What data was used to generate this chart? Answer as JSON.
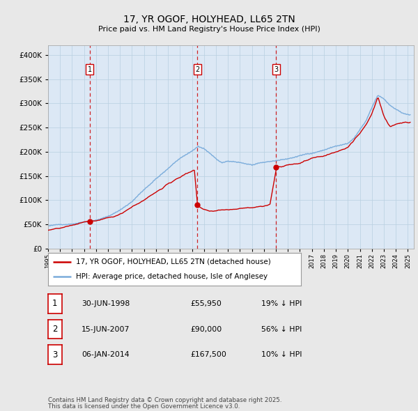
{
  "title": "17, YR OGOF, HOLYHEAD, LL65 2TN",
  "subtitle": "Price paid vs. HM Land Registry's House Price Index (HPI)",
  "legend_line1": "17, YR OGOF, HOLYHEAD, LL65 2TN (detached house)",
  "legend_line2": "HPI: Average price, detached house, Isle of Anglesey",
  "sale_color": "#cc0000",
  "hpi_color": "#7aacdb",
  "background_color": "#e8e8e8",
  "plot_bg": "#dce8f5",
  "sales": [
    {
      "label": "1",
      "date_str": "30-JUN-1998",
      "price": 55950,
      "x_year": 1998.46,
      "pct": "19% ↓ HPI"
    },
    {
      "label": "2",
      "date_str": "15-JUN-2007",
      "price": 90000,
      "x_year": 2007.45,
      "pct": "56% ↓ HPI"
    },
    {
      "label": "3",
      "date_str": "06-JAN-2014",
      "price": 167500,
      "x_year": 2014.02,
      "pct": "10% ↓ HPI"
    }
  ],
  "footer_line1": "Contains HM Land Registry data © Crown copyright and database right 2025.",
  "footer_line2": "This data is licensed under the Open Government Licence v3.0.",
  "ylim": [
    0,
    420000
  ],
  "xlim_start": 1995.0,
  "xlim_end": 2025.5,
  "hpi_anchors_year": [
    1995.0,
    1996.0,
    1997.0,
    1998.0,
    1999.0,
    2000.0,
    2001.0,
    2002.0,
    2003.0,
    2004.0,
    2005.0,
    2006.0,
    2007.0,
    2007.5,
    2008.0,
    2008.5,
    2009.0,
    2009.5,
    2010.0,
    2011.0,
    2012.0,
    2013.0,
    2014.0,
    2015.0,
    2016.0,
    2017.0,
    2018.0,
    2019.0,
    2020.0,
    2020.5,
    2021.0,
    2021.5,
    2022.0,
    2022.5,
    2023.0,
    2023.5,
    2024.0,
    2024.5,
    2025.2
  ],
  "hpi_anchors_val": [
    47000,
    49000,
    52000,
    57000,
    62000,
    70000,
    82000,
    100000,
    125000,
    148000,
    168000,
    190000,
    205000,
    215000,
    210000,
    200000,
    188000,
    180000,
    182000,
    180000,
    175000,
    178000,
    182000,
    186000,
    192000,
    198000,
    205000,
    213000,
    218000,
    228000,
    245000,
    262000,
    290000,
    315000,
    308000,
    295000,
    288000,
    280000,
    275000
  ],
  "paid_seg1_year": [
    1995.0,
    1996.0,
    1997.0,
    1998.46
  ],
  "paid_seg1_val": [
    38000,
    41000,
    46000,
    55950
  ],
  "paid_seg2_year": [
    1998.46,
    1999.5,
    2001.0,
    2003.0,
    2005.0,
    2006.5,
    2007.2,
    2007.45
  ],
  "paid_seg2_val": [
    55950,
    60000,
    72000,
    100000,
    130000,
    150000,
    158000,
    90000
  ],
  "paid_seg3_year": [
    2007.45,
    2008.0,
    2008.5,
    2009.0,
    2009.5,
    2010.5,
    2011.5,
    2012.5,
    2013.0,
    2013.5,
    2014.02
  ],
  "paid_seg3_val": [
    90000,
    82000,
    78000,
    80000,
    82000,
    84000,
    88000,
    90000,
    92000,
    95000,
    167500
  ],
  "paid_seg4_year": [
    2014.02,
    2015.0,
    2016.0,
    2017.0,
    2018.0,
    2019.0,
    2020.0,
    2020.5,
    2021.0,
    2021.5,
    2022.0,
    2022.5,
    2023.0,
    2023.5,
    2024.0,
    2024.5,
    2025.2
  ],
  "paid_seg4_val": [
    167500,
    175000,
    182000,
    192000,
    198000,
    207000,
    215000,
    228000,
    242000,
    260000,
    285000,
    320000,
    280000,
    258000,
    265000,
    268000,
    270000
  ]
}
